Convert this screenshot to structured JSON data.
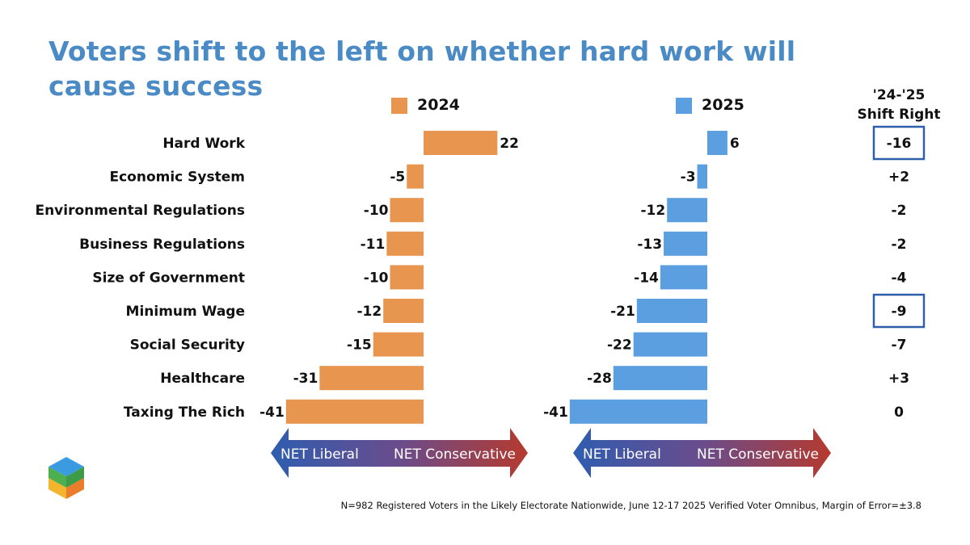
{
  "title": "Voters shift to the left on whether hard work will cause success",
  "footnote": "N=982 Registered Voters in the Likely Electorate Nationwide, June 12-17 2025 Verified Voter Omnibus, Margin of Error=±3.8",
  "shift_header": [
    "'24-'25",
    "Shift Right"
  ],
  "arrow_labels": {
    "left": "NET Liberal",
    "right": "NET Conservative"
  },
  "colors": {
    "title": "#4a8bc6",
    "series_2024": "#e8954f",
    "series_2025": "#5b9fe0",
    "highlight_box": "#2f5fa8"
  },
  "chart_data": {
    "type": "bar",
    "orientation": "horizontal",
    "categories": [
      "Hard Work",
      "Economic System",
      "Environmental Regulations",
      "Business Regulations",
      "Size of Government",
      "Minimum Wage",
      "Social Security",
      "Healthcare",
      "Taxing The Rich"
    ],
    "series": [
      {
        "name": "2024",
        "values": [
          22,
          -5,
          -10,
          -11,
          -10,
          -12,
          -15,
          -31,
          -41
        ]
      },
      {
        "name": "2025",
        "values": [
          6,
          -3,
          -12,
          -13,
          -14,
          -21,
          -22,
          -28,
          -41
        ]
      }
    ],
    "shift_right": [
      "-16",
      "+2",
      "-2",
      "-2",
      "-4",
      "-9",
      "-7",
      "+3",
      "0"
    ],
    "highlighted_shifts": [
      "Hard Work",
      "Minimum Wage"
    ],
    "legend": "top",
    "grid": false
  }
}
